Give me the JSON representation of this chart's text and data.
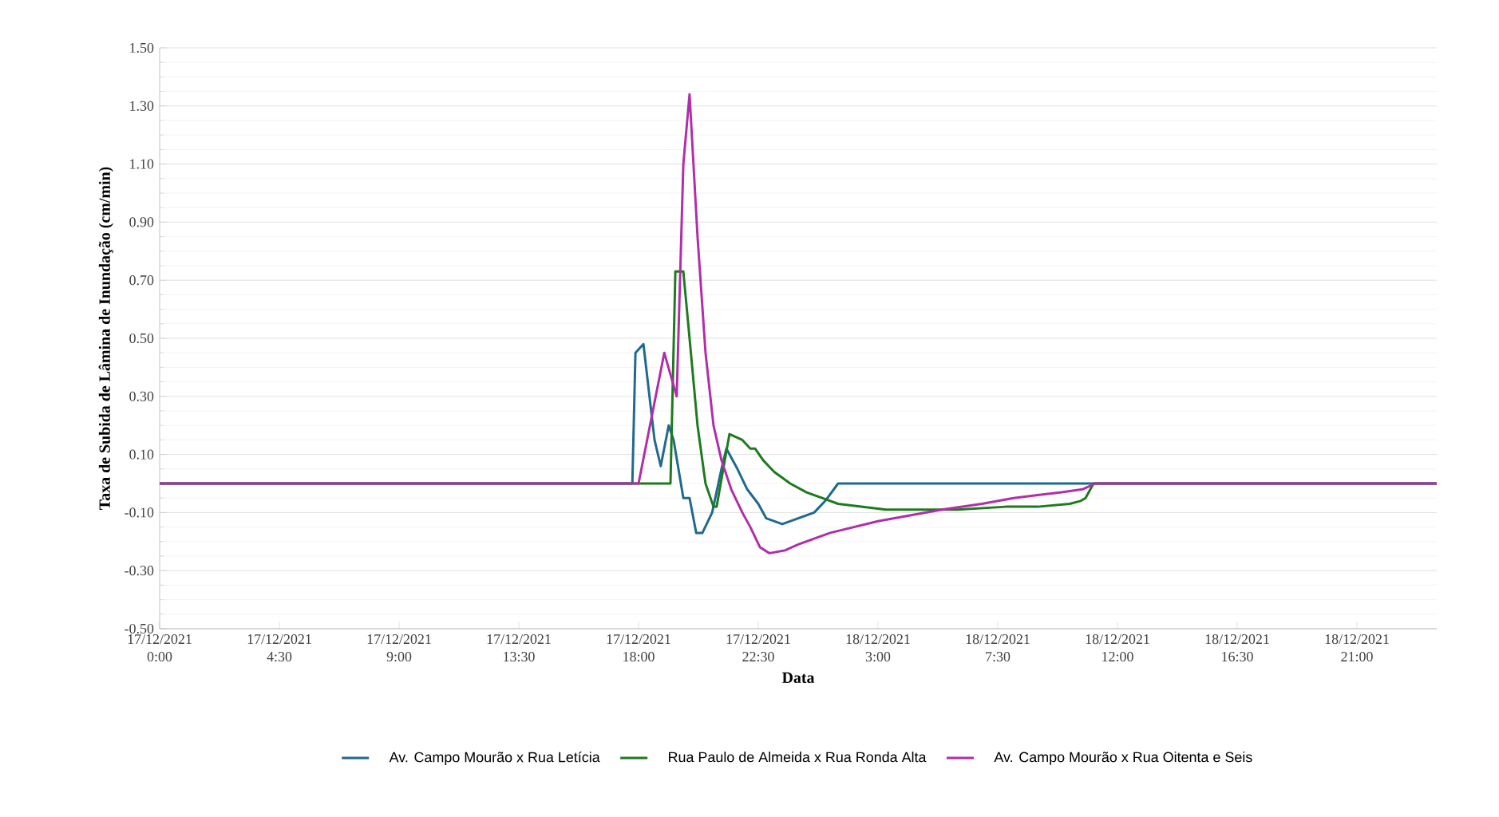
{
  "chart_data": {
    "type": "line",
    "xlabel": "Data",
    "ylabel": "Taxa de Subida de Lâmina de Inundação (cm/min)",
    "xlim": [
      "2021-12-17T00:00",
      "2021-12-19T00:00"
    ],
    "ylim": [
      -0.5,
      1.5
    ],
    "xticks": [
      {
        "value": "2021-12-17T00:00",
        "label": "17/12/2021 0:00"
      },
      {
        "value": "2021-12-17T04:30",
        "label": "17/12/2021 4:30"
      },
      {
        "value": "2021-12-17T09:00",
        "label": "17/12/2021 9:00"
      },
      {
        "value": "2021-12-17T13:30",
        "label": "17/12/2021 13:30"
      },
      {
        "value": "2021-12-17T18:00",
        "label": "17/12/2021 18:00"
      },
      {
        "value": "2021-12-17T22:30",
        "label": "17/12/2021 22:30"
      },
      {
        "value": "2021-12-18T03:00",
        "label": "18/12/2021 3:00"
      },
      {
        "value": "2021-12-18T07:30",
        "label": "18/12/2021 7:30"
      },
      {
        "value": "2021-12-18T12:00",
        "label": "18/12/2021 12:00"
      },
      {
        "value": "2021-12-18T16:30",
        "label": "18/12/2021 16:30"
      },
      {
        "value": "2021-12-18T21:00",
        "label": "18/12/2021 21:00"
      }
    ],
    "yticks": [
      {
        "value": -0.5,
        "label": "-0.50"
      },
      {
        "value": -0.3,
        "label": "-0.30"
      },
      {
        "value": -0.1,
        "label": "-0.10"
      },
      {
        "value": 0.1,
        "label": "0.10"
      },
      {
        "value": 0.3,
        "label": "0.30"
      },
      {
        "value": 0.5,
        "label": "0.50"
      },
      {
        "value": 0.7,
        "label": "0.70"
      },
      {
        "value": 0.9,
        "label": "0.90"
      },
      {
        "value": 1.1,
        "label": "1.10"
      },
      {
        "value": 1.3,
        "label": "1.30"
      },
      {
        "value": 1.5,
        "label": "1.50"
      }
    ],
    "grid": "y",
    "legend": "bottom",
    "marker": "none",
    "line_style": "solid",
    "series": [
      {
        "name": "Av. Campo Mourão x Rua Letícia",
        "color": "#1f6a8e",
        "x": [
          "2021-12-17T00:00",
          "2021-12-17T17:46",
          "2021-12-17T17:53",
          "2021-12-17T18:11",
          "2021-12-17T18:36",
          "2021-12-17T18:50",
          "2021-12-17T19:08",
          "2021-12-17T19:19",
          "2021-12-17T19:41",
          "2021-12-17T19:55",
          "2021-12-17T20:10",
          "2021-12-17T20:24",
          "2021-12-17T20:46",
          "2021-12-17T21:07",
          "2021-12-17T21:18",
          "2021-12-17T21:43",
          "2021-12-17T22:05",
          "2021-12-17T22:30",
          "2021-12-17T22:48",
          "2021-12-17T23:24",
          "2021-12-18T00:00",
          "2021-12-18T00:36",
          "2021-12-18T01:01",
          "2021-12-18T01:30",
          "2021-12-19T00:00"
        ],
        "values": [
          0,
          0,
          0.45,
          0.48,
          0.15,
          0.06,
          0.2,
          0.15,
          -0.05,
          -0.05,
          -0.17,
          -0.17,
          -0.1,
          0.05,
          0.12,
          0.05,
          -0.02,
          -0.07,
          -0.12,
          -0.14,
          -0.12,
          -0.1,
          -0.06,
          0,
          0
        ]
      },
      {
        "name": "Rua Paulo de Almeida x Rua Ronda Alta",
        "color": "#1e7a1e",
        "x": [
          "2021-12-17T00:00",
          "2021-12-17T19:12",
          "2021-12-17T19:23",
          "2021-12-17T19:41",
          "2021-12-17T19:55",
          "2021-12-17T20:13",
          "2021-12-17T20:31",
          "2021-12-17T20:49",
          "2021-12-17T20:56",
          "2021-12-17T21:11",
          "2021-12-17T21:25",
          "2021-12-17T21:54",
          "2021-12-17T22:12",
          "2021-12-17T22:23",
          "2021-12-17T22:41",
          "2021-12-17T23:06",
          "2021-12-17T23:42",
          "2021-12-18T00:18",
          "2021-12-18T00:54",
          "2021-12-18T01:30",
          "2021-12-18T02:24",
          "2021-12-18T03:18",
          "2021-12-18T04:48",
          "2021-12-18T06:00",
          "2021-12-18T07:48",
          "2021-12-18T09:00",
          "2021-12-18T10:12",
          "2021-12-18T10:37",
          "2021-12-18T10:48",
          "2021-12-18T11:06",
          "2021-12-19T00:00"
        ],
        "values": [
          0,
          0,
          0.73,
          0.73,
          0.5,
          0.2,
          0,
          -0.08,
          -0.08,
          0.05,
          0.17,
          0.15,
          0.12,
          0.12,
          0.08,
          0.04,
          0,
          -0.03,
          -0.05,
          -0.07,
          -0.08,
          -0.09,
          -0.09,
          -0.09,
          -0.08,
          -0.08,
          -0.07,
          -0.06,
          -0.05,
          0,
          0
        ]
      },
      {
        "name": "Av. Campo Mourão x Rua Oitenta e Seis",
        "color": "#b02fa8",
        "x": [
          "2021-12-17T00:00",
          "2021-12-17T18:00",
          "2021-12-17T18:58",
          "2021-12-17T19:26",
          "2021-12-17T19:41",
          "2021-12-17T19:55",
          "2021-12-17T20:13",
          "2021-12-17T20:31",
          "2021-12-17T20:49",
          "2021-12-17T21:07",
          "2021-12-17T21:29",
          "2021-12-17T21:54",
          "2021-12-17T22:12",
          "2021-12-17T22:34",
          "2021-12-17T22:55",
          "2021-12-17T23:31",
          "2021-12-18T00:00",
          "2021-12-18T00:36",
          "2021-12-18T01:12",
          "2021-12-18T02:06",
          "2021-12-18T03:00",
          "2021-12-18T04:12",
          "2021-12-18T05:24",
          "2021-12-18T06:54",
          "2021-12-18T08:06",
          "2021-12-18T09:00",
          "2021-12-18T09:54",
          "2021-12-18T10:41",
          "2021-12-18T11:10",
          "2021-12-19T00:00"
        ],
        "values": [
          0,
          0,
          0.45,
          0.3,
          1.1,
          1.34,
          0.85,
          0.45,
          0.2,
          0.08,
          -0.02,
          -0.1,
          -0.15,
          -0.22,
          -0.24,
          -0.23,
          -0.21,
          -0.19,
          -0.17,
          -0.15,
          -0.13,
          -0.11,
          -0.09,
          -0.07,
          -0.05,
          -0.04,
          -0.03,
          -0.02,
          0,
          0
        ]
      }
    ]
  }
}
